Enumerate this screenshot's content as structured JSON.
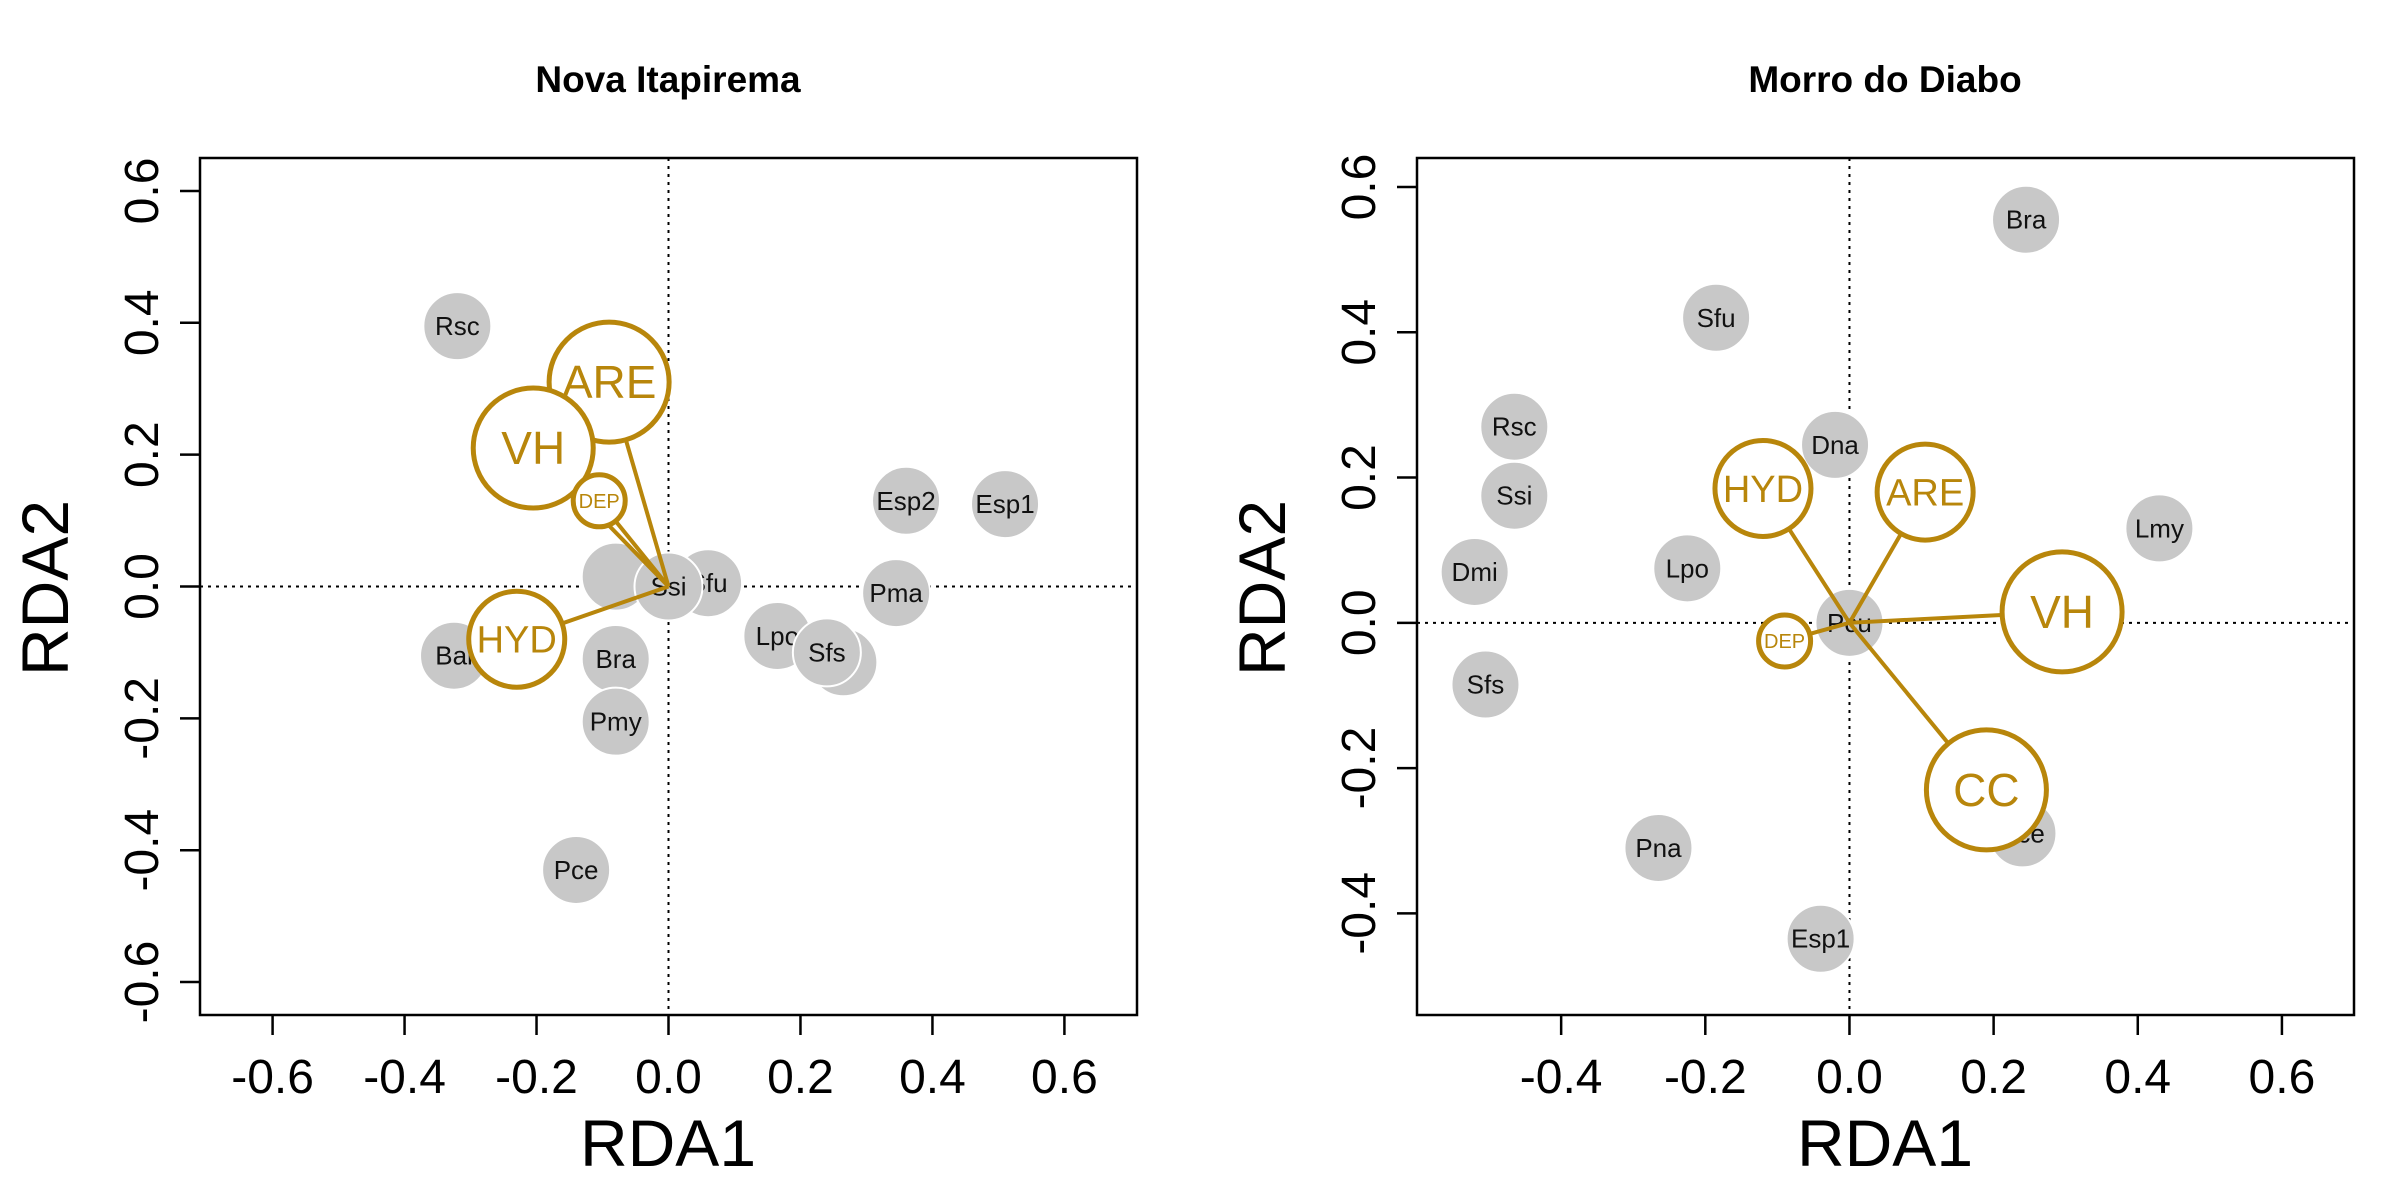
{
  "colors": {
    "species_fill": "#C8C8C8",
    "env": "#B8860B",
    "frame": "#000000"
  },
  "chart_data": [
    {
      "type": "scatter",
      "title": "Nova Itapirema",
      "xlabel": "RDA1",
      "ylabel": "RDA2",
      "xlim": [
        -0.71,
        0.71
      ],
      "ylim": [
        -0.65,
        0.65
      ],
      "xticks": [
        -0.6,
        -0.4,
        -0.2,
        0.0,
        0.2,
        0.4,
        0.6
      ],
      "yticks": [
        -0.6,
        -0.4,
        -0.2,
        0.0,
        0.2,
        0.4,
        0.6
      ],
      "species": [
        {
          "label": "Rsc",
          "x": -0.32,
          "y": 0.395
        },
        {
          "label": "Bal",
          "x": -0.325,
          "y": -0.105
        },
        {
          "label": "Bra",
          "x": -0.08,
          "y": -0.11
        },
        {
          "label": "Pmy",
          "x": -0.08,
          "y": -0.205
        },
        {
          "label": "Pce",
          "x": -0.14,
          "y": -0.43
        },
        {
          "label": "",
          "x": -0.08,
          "y": 0.015
        },
        {
          "label": "Sfu",
          "x": 0.06,
          "y": 0.005
        },
        {
          "label": "Ssi",
          "x": 0.0,
          "y": 0.0
        },
        {
          "label": "Lpo",
          "x": 0.165,
          "y": -0.075
        },
        {
          "label": "",
          "x": 0.265,
          "y": -0.115
        },
        {
          "label": "Sfs",
          "x": 0.24,
          "y": -0.1
        },
        {
          "label": "Esp2",
          "x": 0.36,
          "y": 0.13
        },
        {
          "label": "Esp1",
          "x": 0.51,
          "y": 0.125
        },
        {
          "label": "Pma",
          "x": 0.345,
          "y": -0.01
        }
      ],
      "env_vectors": [
        {
          "label": "ARE",
          "x": -0.09,
          "y": 0.31,
          "size": "large"
        },
        {
          "label": "VH",
          "x": -0.205,
          "y": 0.21,
          "size": "large"
        },
        {
          "label": "DEP",
          "x": -0.105,
          "y": 0.13,
          "size": "small"
        },
        {
          "label": "HYD",
          "x": -0.23,
          "y": -0.08,
          "size": "medium"
        }
      ]
    },
    {
      "type": "scatter",
      "title": "Morro do Diabo",
      "xlabel": "RDA1",
      "ylabel": "RDA2",
      "xlim": [
        -0.6,
        0.7
      ],
      "ylim": [
        -0.54,
        0.64
      ],
      "xticks": [
        -0.4,
        -0.2,
        0.0,
        0.2,
        0.4,
        0.6
      ],
      "yticks": [
        -0.4,
        -0.2,
        0.0,
        0.2,
        0.4,
        0.6
      ],
      "species": [
        {
          "label": "Bra",
          "x": 0.245,
          "y": 0.555
        },
        {
          "label": "Sfu",
          "x": -0.185,
          "y": 0.42
        },
        {
          "label": "Rsc",
          "x": -0.465,
          "y": 0.27
        },
        {
          "label": "Ssi",
          "x": -0.465,
          "y": 0.175
        },
        {
          "label": "Dmi",
          "x": -0.52,
          "y": 0.07
        },
        {
          "label": "Sfs",
          "x": -0.505,
          "y": -0.085
        },
        {
          "label": "Dna",
          "x": -0.02,
          "y": 0.245
        },
        {
          "label": "Lpo",
          "x": -0.225,
          "y": 0.075
        },
        {
          "label": "Lmy",
          "x": 0.43,
          "y": 0.13
        },
        {
          "label": "Pcu",
          "x": 0.0,
          "y": 0.0
        },
        {
          "label": "Pce",
          "x": 0.24,
          "y": -0.29
        },
        {
          "label": "Pna",
          "x": -0.265,
          "y": -0.31
        },
        {
          "label": "Esp1",
          "x": -0.04,
          "y": -0.435
        }
      ],
      "env_vectors": [
        {
          "label": "HYD",
          "x": -0.12,
          "y": 0.185,
          "size": "medium"
        },
        {
          "label": "ARE",
          "x": 0.105,
          "y": 0.18,
          "size": "medium"
        },
        {
          "label": "VH",
          "x": 0.295,
          "y": 0.015,
          "size": "large"
        },
        {
          "label": "DEP",
          "x": -0.09,
          "y": -0.025,
          "size": "small"
        },
        {
          "label": "CC",
          "x": 0.19,
          "y": -0.23,
          "size": "large"
        }
      ]
    }
  ]
}
